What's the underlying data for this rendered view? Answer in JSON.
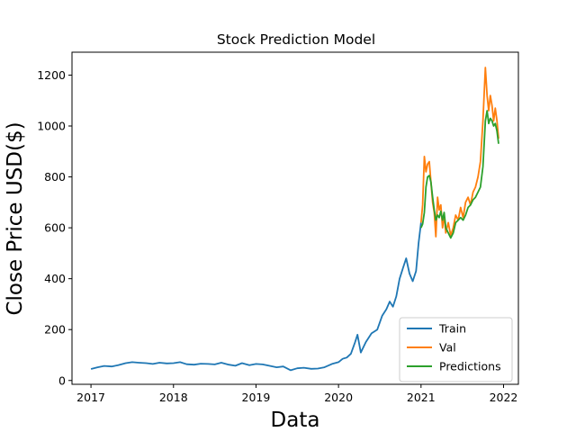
{
  "chart_data": {
    "type": "line",
    "title": "Stock Prediction Model",
    "xlabel": "Data",
    "ylabel": "Close Price USD($)",
    "xlim": [
      2016.77,
      2022.18
    ],
    "ylim": [
      -15,
      1290
    ],
    "x_ticks": [
      2017,
      2018,
      2019,
      2020,
      2021,
      2022
    ],
    "x_tick_labels": [
      "2017",
      "2018",
      "2019",
      "2020",
      "2021",
      "2022"
    ],
    "y_ticks": [
      0,
      200,
      400,
      600,
      800,
      1000,
      1200
    ],
    "y_tick_labels": [
      "0",
      "200",
      "400",
      "600",
      "800",
      "1000",
      "1200"
    ],
    "grid": false,
    "legend": {
      "location": "lower-right",
      "entries": [
        "Train",
        "Val",
        "Predictions"
      ]
    },
    "series": [
      {
        "name": "Train",
        "color": "#1f77b4",
        "x": [
          2017.0,
          2017.08,
          2017.16,
          2017.25,
          2017.33,
          2017.42,
          2017.5,
          2017.58,
          2017.67,
          2017.75,
          2017.83,
          2017.92,
          2018.0,
          2018.08,
          2018.16,
          2018.25,
          2018.33,
          2018.42,
          2018.5,
          2018.58,
          2018.67,
          2018.75,
          2018.83,
          2018.92,
          2019.0,
          2019.08,
          2019.16,
          2019.25,
          2019.33,
          2019.42,
          2019.5,
          2019.58,
          2019.67,
          2019.75,
          2019.83,
          2019.92,
          2020.0,
          2020.05,
          2020.1,
          2020.15,
          2020.2,
          2020.23,
          2020.27,
          2020.33,
          2020.4,
          2020.47,
          2020.53,
          2020.58,
          2020.62,
          2020.66,
          2020.7,
          2020.74,
          2020.78,
          2020.82,
          2020.86,
          2020.9,
          2020.94,
          2020.97,
          2021.0
        ],
        "values": [
          45,
          52,
          57,
          55,
          60,
          68,
          72,
          70,
          68,
          65,
          70,
          67,
          68,
          72,
          64,
          62,
          66,
          65,
          63,
          70,
          62,
          58,
          68,
          60,
          65,
          63,
          58,
          52,
          55,
          40,
          48,
          50,
          46,
          47,
          52,
          65,
          72,
          85,
          90,
          105,
          150,
          180,
          110,
          150,
          185,
          200,
          255,
          280,
          310,
          290,
          330,
          400,
          440,
          480,
          420,
          390,
          430,
          540,
          620
        ]
      },
      {
        "name": "Val",
        "color": "#ff7f0e",
        "x": [
          2021.0,
          2021.02,
          2021.04,
          2021.06,
          2021.08,
          2021.1,
          2021.12,
          2021.14,
          2021.16,
          2021.18,
          2021.2,
          2021.22,
          2021.24,
          2021.26,
          2021.28,
          2021.3,
          2021.33,
          2021.36,
          2021.39,
          2021.42,
          2021.45,
          2021.48,
          2021.51,
          2021.54,
          2021.57,
          2021.6,
          2021.63,
          2021.66,
          2021.69,
          2021.72,
          2021.75,
          2021.78,
          2021.8,
          2021.82,
          2021.84,
          2021.86,
          2021.88,
          2021.9,
          2021.92,
          2021.94
        ],
        "values": [
          620,
          690,
          880,
          820,
          850,
          860,
          780,
          700,
          660,
          565,
          720,
          670,
          690,
          600,
          650,
          580,
          620,
          570,
          600,
          650,
          630,
          680,
          640,
          700,
          720,
          690,
          740,
          760,
          800,
          860,
          1020,
          1230,
          1120,
          1060,
          1120,
          1080,
          1020,
          1070,
          1020,
          950
        ]
      },
      {
        "name": "Predictions",
        "color": "#2ca02c",
        "x": [
          2021.0,
          2021.02,
          2021.04,
          2021.06,
          2021.08,
          2021.1,
          2021.12,
          2021.14,
          2021.16,
          2021.18,
          2021.2,
          2021.22,
          2021.24,
          2021.26,
          2021.28,
          2021.3,
          2021.33,
          2021.36,
          2021.39,
          2021.42,
          2021.45,
          2021.48,
          2021.51,
          2021.54,
          2021.57,
          2021.6,
          2021.63,
          2021.66,
          2021.69,
          2021.72,
          2021.75,
          2021.78,
          2021.8,
          2021.82,
          2021.84,
          2021.86,
          2021.88,
          2021.9,
          2021.92,
          2021.94
        ],
        "values": [
          600,
          615,
          660,
          760,
          800,
          805,
          780,
          720,
          670,
          630,
          650,
          640,
          665,
          630,
          660,
          600,
          580,
          560,
          580,
          620,
          630,
          640,
          630,
          650,
          680,
          690,
          710,
          720,
          740,
          760,
          840,
          1020,
          1060,
          1010,
          1030,
          1020,
          1000,
          1010,
          980,
          930
        ]
      }
    ]
  }
}
